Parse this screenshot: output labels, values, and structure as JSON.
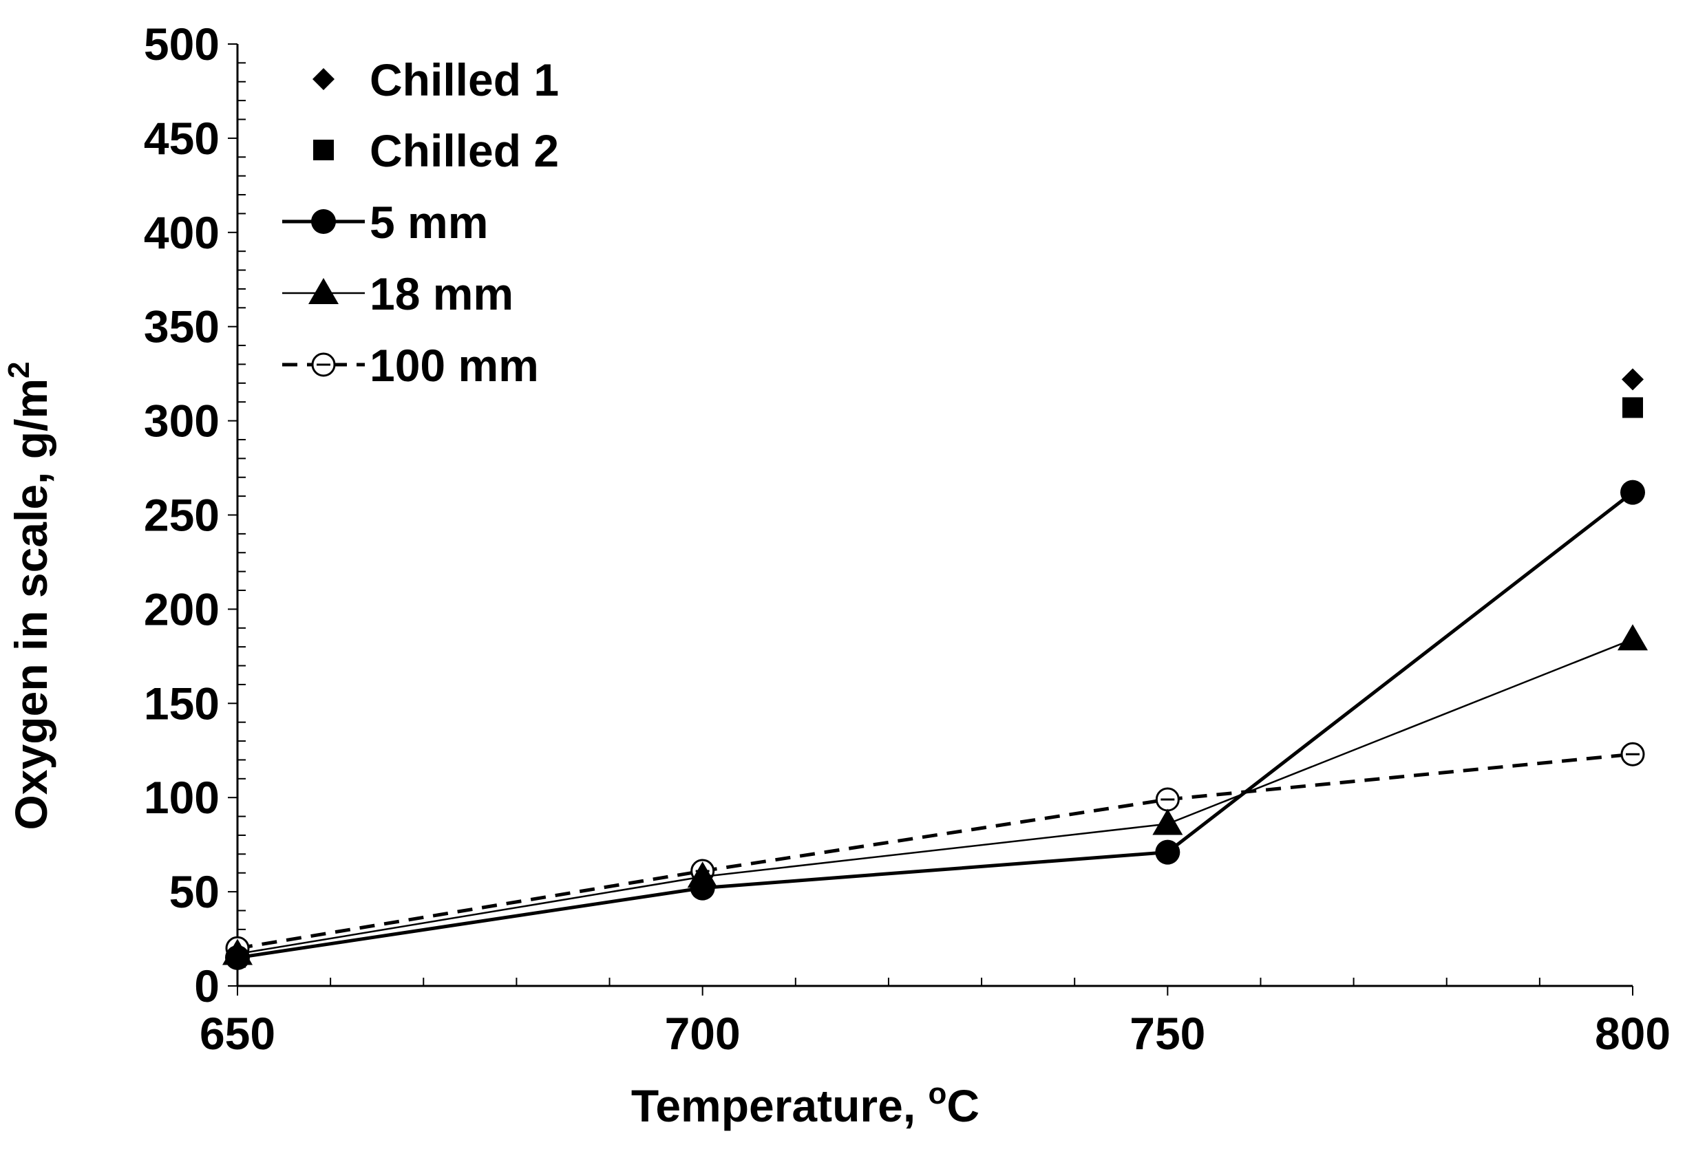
{
  "chart_data": {
    "type": "line",
    "title": "",
    "xlabel": "Temperature, ",
    "xlabel_sup": "o",
    "xlabel_unit": "C",
    "ylabel": "Oxygen in scale, g/m",
    "ylabel_sup": "2",
    "xlim": [
      650,
      800
    ],
    "ylim": [
      0,
      500
    ],
    "x_ticks": [
      650,
      700,
      750,
      800
    ],
    "x_tick_labels": [
      "650",
      "700",
      "750",
      "800"
    ],
    "y_ticks": [
      0,
      50,
      100,
      150,
      200,
      250,
      300,
      350,
      400,
      450,
      500
    ],
    "y_tick_labels": [
      "0",
      "50",
      "100",
      "150",
      "200",
      "250",
      "300",
      "350",
      "400",
      "450",
      "500"
    ],
    "grid": false,
    "legend_position": "top-left",
    "series": [
      {
        "name": "Chilled 1",
        "marker": "diamond",
        "line": "none",
        "x": [
          800
        ],
        "values": [
          322
        ]
      },
      {
        "name": "Chilled 2",
        "marker": "square",
        "line": "none",
        "x": [
          800
        ],
        "values": [
          307
        ]
      },
      {
        "name": "5 mm",
        "marker": "circle-filled",
        "line": "solid-thick",
        "x": [
          650,
          700,
          750,
          800
        ],
        "values": [
          15,
          52,
          71,
          262
        ]
      },
      {
        "name": "18 mm",
        "marker": "triangle",
        "line": "solid-thin",
        "x": [
          650,
          700,
          750,
          800
        ],
        "values": [
          17,
          58,
          86,
          184
        ]
      },
      {
        "name": "100 mm",
        "marker": "circle-open-bar",
        "line": "dashed",
        "x": [
          650,
          700,
          750,
          800
        ],
        "values": [
          20,
          61,
          99,
          123
        ]
      }
    ]
  }
}
